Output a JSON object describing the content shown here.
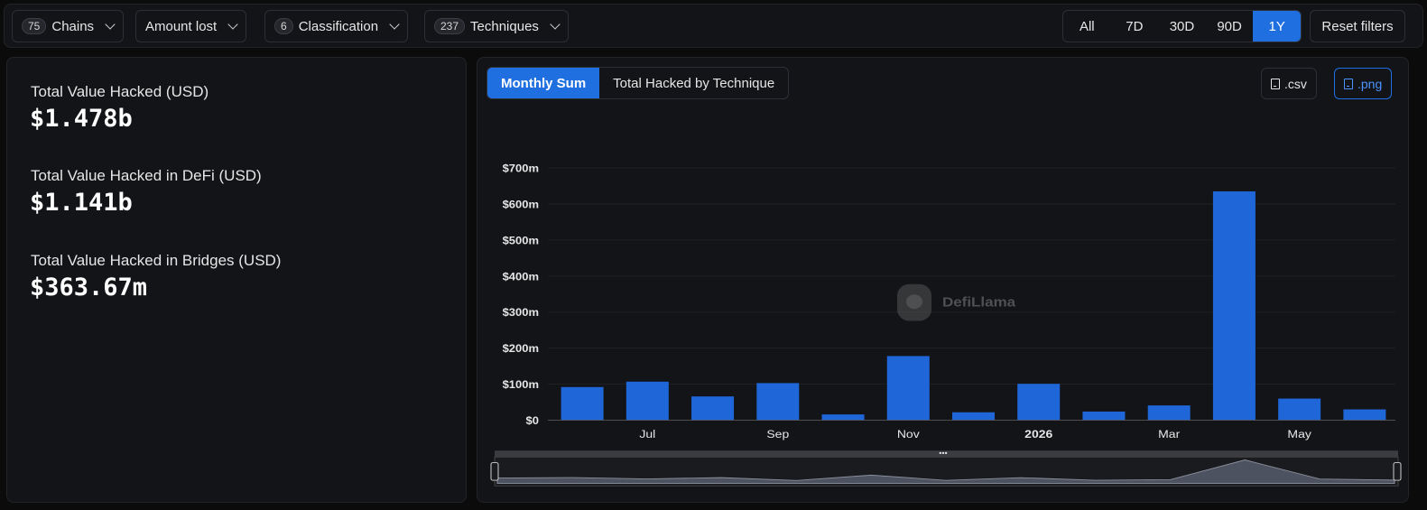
{
  "filters": {
    "chains": {
      "count": "75",
      "label": "Chains"
    },
    "amount": {
      "label": "Amount lost"
    },
    "classification": {
      "count": "6",
      "label": "Classification"
    },
    "techniques": {
      "count": "237",
      "label": "Techniques"
    }
  },
  "ranges": [
    "All",
    "7D",
    "30D",
    "90D",
    "1Y"
  ],
  "active_range": "1Y",
  "reset_label": "Reset filters",
  "stats": {
    "total_label": "Total Value Hacked (USD)",
    "total_value": "$1.478b",
    "defi_label": "Total Value Hacked in DeFi (USD)",
    "defi_value": "$1.141b",
    "bridges_label": "Total Value Hacked in Bridges (USD)",
    "bridges_value": "$363.67m"
  },
  "chart_tabs": {
    "monthly": "Monthly Sum",
    "technique": "Total Hacked by Technique"
  },
  "downloads": {
    "csv": ".csv",
    "png": ".png"
  },
  "watermark": "DefiLlama",
  "colors": {
    "accent": "#1f6fe0",
    "bar": "#1f66d8",
    "background": "#131417"
  },
  "chart_data": {
    "type": "bar",
    "categories": [
      "2025-06",
      "2025-07",
      "2025-08",
      "2025-09",
      "2025-10",
      "2025-11",
      "2025-12",
      "2026-01",
      "2026-02",
      "2026-03",
      "2026-04",
      "2026-05",
      "2026-06"
    ],
    "values": [
      92,
      107,
      66,
      103,
      16,
      178,
      22,
      101,
      24,
      41,
      635,
      60,
      30
    ],
    "unit": "USD millions",
    "y_tick_labels": [
      "$0",
      "$100m",
      "$200m",
      "$300m",
      "$400m",
      "$500m",
      "$600m",
      "$700m"
    ],
    "x_tick_labels": [
      "Jul",
      "Sep",
      "Nov",
      "2026",
      "Mar",
      "May"
    ],
    "ylim": [
      0,
      700
    ],
    "grid": true,
    "legend": "none"
  }
}
